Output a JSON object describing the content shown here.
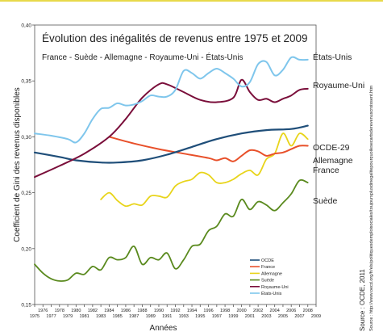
{
  "chart_data": {
    "type": "line",
    "title": "Évolution des inégalités de revenus entre 1975 et 2009",
    "subtitle": "France - Suède - Allemagne - Royaume-Uni - États-Unis",
    "xlabel": "Années",
    "ylabel": "Coefficient de Gini des revenus disponibles",
    "ylim": [
      0.15,
      0.4
    ],
    "yticks": [
      "0,15",
      "0,20",
      "0,25",
      "0,30",
      "0,35",
      "0,40"
    ],
    "xlim": [
      1975,
      2009
    ],
    "xticks_upper": [
      "1976",
      "1978",
      "1980",
      "1982",
      "1984",
      "1986",
      "1988",
      "1990",
      "1992",
      "1994",
      "1996",
      "1998",
      "2000",
      "2002",
      "2004",
      "2006",
      "2008"
    ],
    "xticks_lower": [
      "1975",
      "1977",
      "1979",
      "1981",
      "1983",
      "1985",
      "1987",
      "1989",
      "1991",
      "1993",
      "1995",
      "1997",
      "1999",
      "2001",
      "2003",
      "2005",
      "2007",
      "2009"
    ],
    "grid": false,
    "legend_position": "bottom-right",
    "legend": [
      {
        "label": "OCDE",
        "color": "#1f4e79"
      },
      {
        "label": "France",
        "color": "#e8502a"
      },
      {
        "label": "Allemagne",
        "color": "#e8d41a"
      },
      {
        "label": "Suède",
        "color": "#5a8a1e"
      },
      {
        "label": "Royaume-Uni",
        "color": "#7a0e3a"
      },
      {
        "label": "États-Unis",
        "color": "#7fc6ec"
      }
    ],
    "end_labels": [
      {
        "text": "États-Unis",
        "series": 5
      },
      {
        "text": "Royaume-Uni",
        "series": 4
      },
      {
        "text": "OCDE-29",
        "series": 0
      },
      {
        "text": "Allemagne",
        "series": 2
      },
      {
        "text": "France",
        "series": 1
      },
      {
        "text": "Suède",
        "series": 3
      }
    ],
    "series": [
      {
        "name": "OCDE",
        "color": "#1f4e79",
        "width": 2.2,
        "points": [
          [
            1975,
            0.286
          ],
          [
            1978,
            0.282
          ],
          [
            1980,
            0.279
          ],
          [
            1983,
            0.277
          ],
          [
            1985,
            0.277
          ],
          [
            1988,
            0.279
          ],
          [
            1991,
            0.284
          ],
          [
            1994,
            0.291
          ],
          [
            1997,
            0.298
          ],
          [
            2000,
            0.303
          ],
          [
            2003,
            0.306
          ],
          [
            2006,
            0.307
          ],
          [
            2008,
            0.31
          ]
        ]
      },
      {
        "name": "France",
        "color": "#e8502a",
        "width": 2,
        "points": [
          [
            1984,
            0.3
          ],
          [
            1987,
            0.294
          ],
          [
            1990,
            0.289
          ],
          [
            1993,
            0.285
          ],
          [
            1996,
            0.281
          ],
          [
            1997,
            0.279
          ],
          [
            1998,
            0.281
          ],
          [
            1999,
            0.278
          ],
          [
            2000,
            0.283
          ],
          [
            2001,
            0.288
          ],
          [
            2002,
            0.287
          ],
          [
            2003,
            0.283
          ],
          [
            2004,
            0.285
          ],
          [
            2005,
            0.286
          ],
          [
            2006,
            0.289
          ],
          [
            2007,
            0.292
          ],
          [
            2008,
            0.292
          ]
        ]
      },
      {
        "name": "Allemagne",
        "color": "#e8d41a",
        "width": 1.8,
        "points": [
          [
            1983,
            0.244
          ],
          [
            1984,
            0.25
          ],
          [
            1985,
            0.243
          ],
          [
            1986,
            0.238
          ],
          [
            1987,
            0.24
          ],
          [
            1988,
            0.239
          ],
          [
            1989,
            0.247
          ],
          [
            1990,
            0.247
          ],
          [
            1991,
            0.246
          ],
          [
            1992,
            0.256
          ],
          [
            1993,
            0.26
          ],
          [
            1994,
            0.262
          ],
          [
            1995,
            0.268
          ],
          [
            1996,
            0.266
          ],
          [
            1997,
            0.259
          ],
          [
            1998,
            0.259
          ],
          [
            1999,
            0.262
          ],
          [
            2000,
            0.267
          ],
          [
            2001,
            0.27
          ],
          [
            2002,
            0.266
          ],
          [
            2003,
            0.28
          ],
          [
            2004,
            0.285
          ],
          [
            2005,
            0.303
          ],
          [
            2006,
            0.292
          ],
          [
            2007,
            0.303
          ],
          [
            2008,
            0.298
          ]
        ]
      },
      {
        "name": "Suède",
        "color": "#5a8a1e",
        "width": 1.8,
        "points": [
          [
            1975,
            0.186
          ],
          [
            1976,
            0.178
          ],
          [
            1977,
            0.173
          ],
          [
            1978,
            0.171
          ],
          [
            1979,
            0.172
          ],
          [
            1980,
            0.178
          ],
          [
            1981,
            0.177
          ],
          [
            1982,
            0.184
          ],
          [
            1983,
            0.181
          ],
          [
            1984,
            0.192
          ],
          [
            1985,
            0.19
          ],
          [
            1986,
            0.192
          ],
          [
            1987,
            0.202
          ],
          [
            1988,
            0.186
          ],
          [
            1989,
            0.192
          ],
          [
            1990,
            0.19
          ],
          [
            1991,
            0.196
          ],
          [
            1992,
            0.182
          ],
          [
            1993,
            0.19
          ],
          [
            1994,
            0.202
          ],
          [
            1995,
            0.204
          ],
          [
            1996,
            0.216
          ],
          [
            1997,
            0.22
          ],
          [
            1998,
            0.231
          ],
          [
            1999,
            0.229
          ],
          [
            2000,
            0.244
          ],
          [
            2001,
            0.235
          ],
          [
            2002,
            0.242
          ],
          [
            2003,
            0.239
          ],
          [
            2004,
            0.234
          ],
          [
            2005,
            0.241
          ],
          [
            2006,
            0.249
          ],
          [
            2007,
            0.261
          ],
          [
            2008,
            0.259
          ]
        ]
      },
      {
        "name": "Royaume-Uni",
        "color": "#7a0e3a",
        "width": 2,
        "points": [
          [
            1975,
            0.264
          ],
          [
            1978,
            0.274
          ],
          [
            1981,
            0.285
          ],
          [
            1984,
            0.3
          ],
          [
            1986,
            0.316
          ],
          [
            1988,
            0.335
          ],
          [
            1990,
            0.347
          ],
          [
            1991,
            0.347
          ],
          [
            1993,
            0.34
          ],
          [
            1995,
            0.333
          ],
          [
            1997,
            0.331
          ],
          [
            1999,
            0.335
          ],
          [
            2000,
            0.351
          ],
          [
            2001,
            0.34
          ],
          [
            2002,
            0.333
          ],
          [
            2003,
            0.334
          ],
          [
            2004,
            0.331
          ],
          [
            2005,
            0.334
          ],
          [
            2006,
            0.337
          ],
          [
            2007,
            0.342
          ],
          [
            2008,
            0.343
          ]
        ]
      },
      {
        "name": "États-Unis",
        "color": "#7fc6ec",
        "width": 2,
        "points": [
          [
            1975,
            0.303
          ],
          [
            1977,
            0.301
          ],
          [
            1979,
            0.298
          ],
          [
            1980,
            0.295
          ],
          [
            1981,
            0.303
          ],
          [
            1982,
            0.316
          ],
          [
            1983,
            0.325
          ],
          [
            1984,
            0.326
          ],
          [
            1985,
            0.33
          ],
          [
            1986,
            0.328
          ],
          [
            1987,
            0.329
          ],
          [
            1988,
            0.332
          ],
          [
            1989,
            0.337
          ],
          [
            1990,
            0.336
          ],
          [
            1991,
            0.336
          ],
          [
            1992,
            0.342
          ],
          [
            1993,
            0.359
          ],
          [
            1994,
            0.357
          ],
          [
            1995,
            0.352
          ],
          [
            1996,
            0.357
          ],
          [
            1997,
            0.361
          ],
          [
            1998,
            0.357
          ],
          [
            1999,
            0.352
          ],
          [
            2000,
            0.345
          ],
          [
            2001,
            0.349
          ],
          [
            2002,
            0.365
          ],
          [
            2003,
            0.367
          ],
          [
            2004,
            0.355
          ],
          [
            2005,
            0.36
          ],
          [
            2006,
            0.371
          ],
          [
            2007,
            0.369
          ],
          [
            2008,
            0.369
          ]
        ]
      }
    ]
  },
  "source": {
    "main": "Source : OCDE, 2011",
    "url": "Source : http://www.oecd.org/fr/els/politiquesdemploisociales/toujoursplusdinegalitepourquoilesecartsderevenuscroissent.htm"
  }
}
